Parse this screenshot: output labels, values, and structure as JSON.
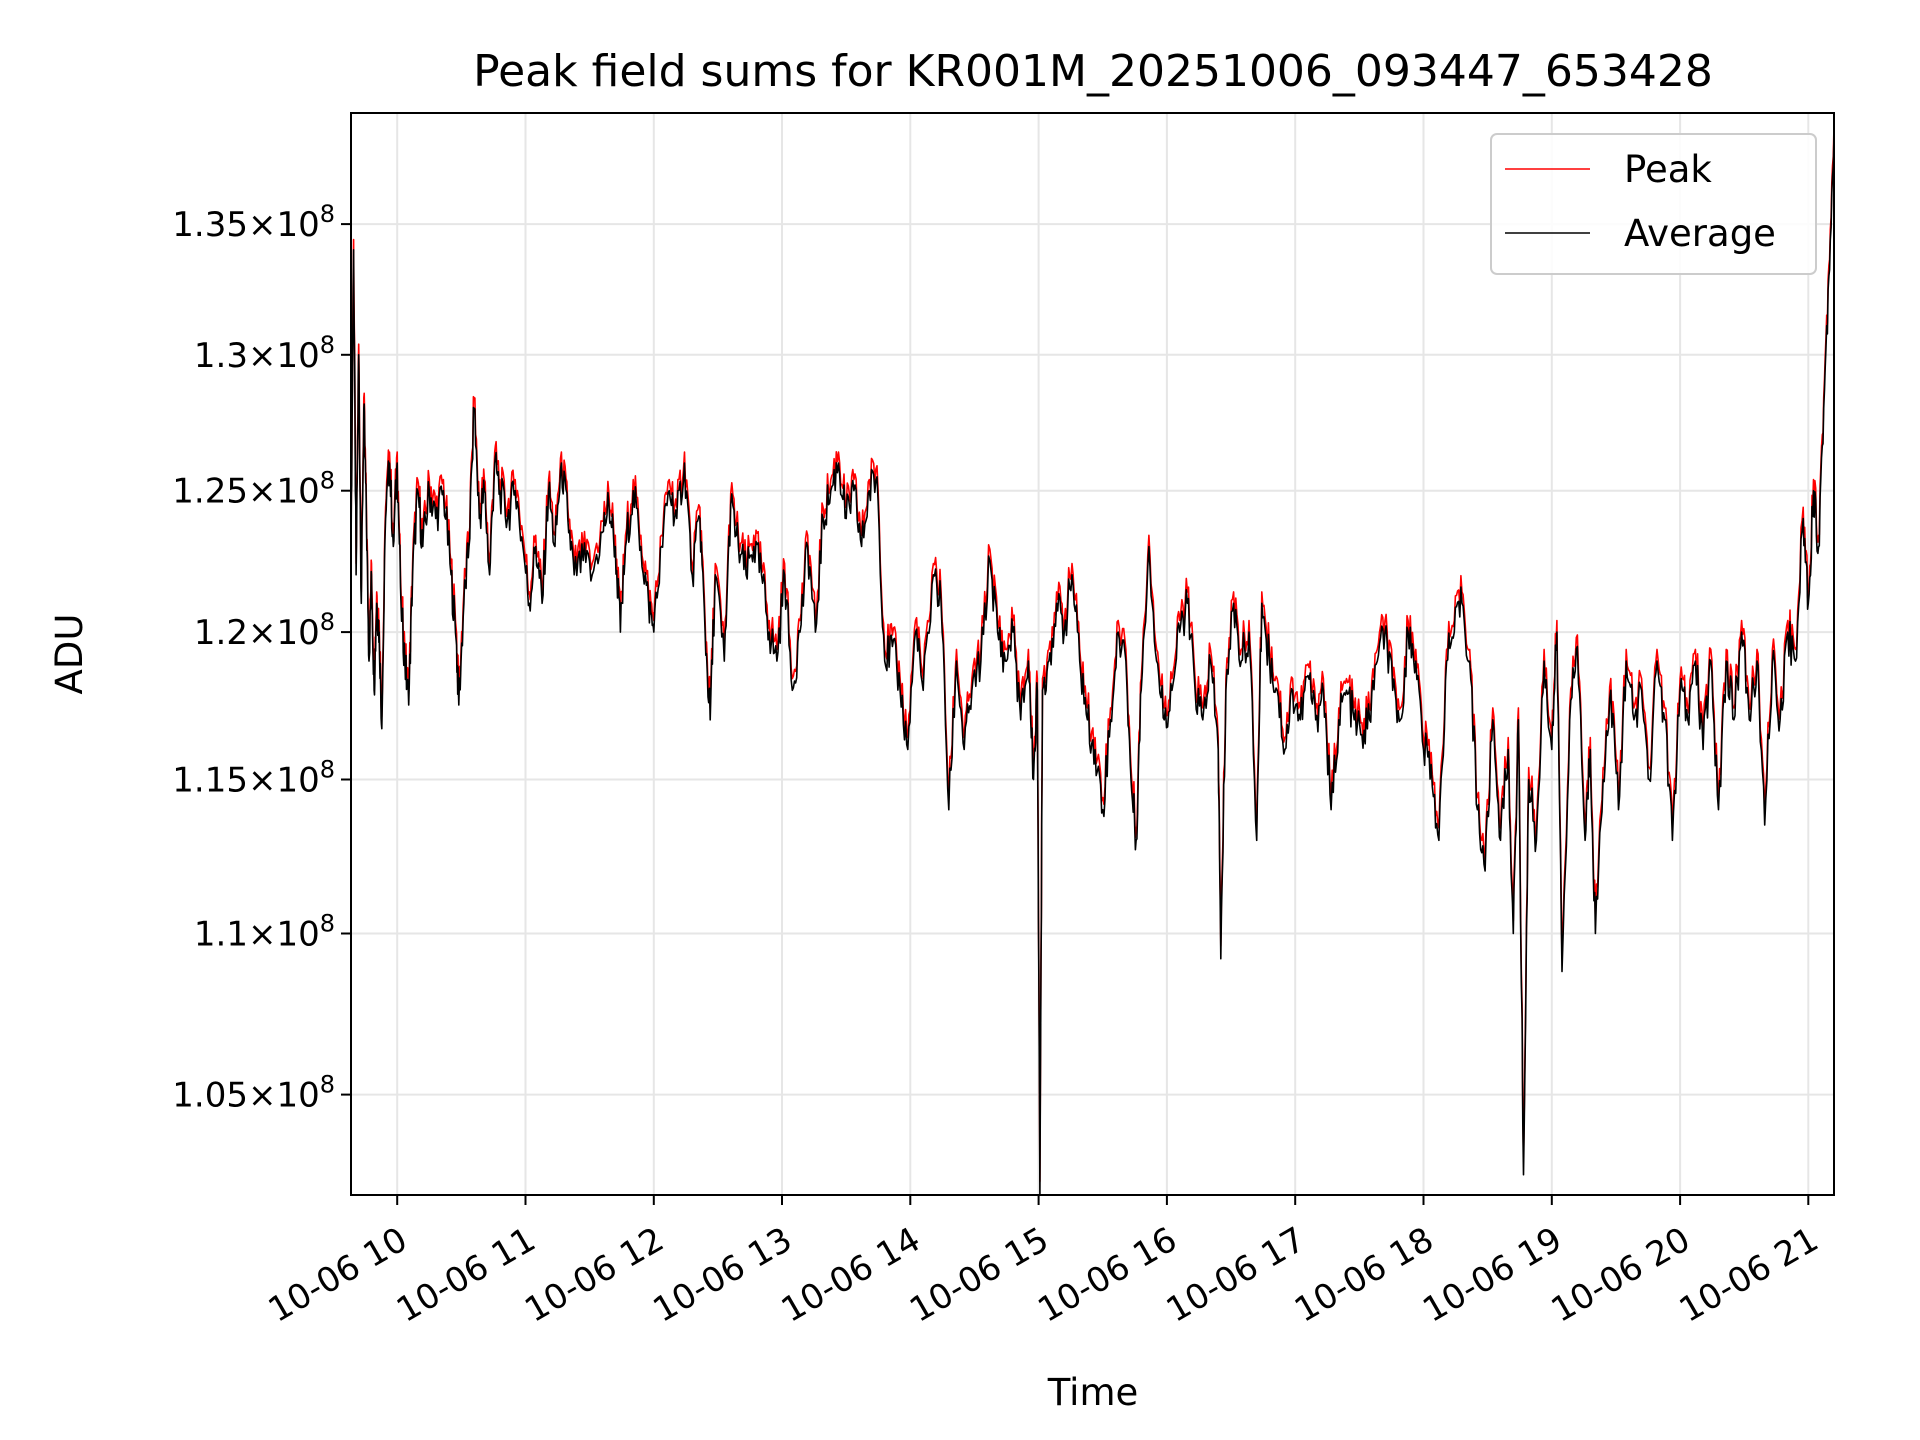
{
  "chart_data": {
    "type": "line",
    "title": "Peak field sums for KR001M_20251006_093447_653428",
    "xlabel": "Time",
    "ylabel": "ADU",
    "yscale": "log",
    "ylim": [
      102000000,
      139400000
    ],
    "xlim_hours": [
      9.64,
      21.2
    ],
    "grid": true,
    "legend_position": "top-right",
    "x_ticks": [
      {
        "hour": 10,
        "label": "10-06 10"
      },
      {
        "hour": 11,
        "label": "10-06 11"
      },
      {
        "hour": 12,
        "label": "10-06 12"
      },
      {
        "hour": 13,
        "label": "10-06 13"
      },
      {
        "hour": 14,
        "label": "10-06 14"
      },
      {
        "hour": 15,
        "label": "10-06 15"
      },
      {
        "hour": 16,
        "label": "10-06 16"
      },
      {
        "hour": 17,
        "label": "10-06 17"
      },
      {
        "hour": 18,
        "label": "10-06 18"
      },
      {
        "hour": 19,
        "label": "10-06 19"
      },
      {
        "hour": 20,
        "label": "10-06 20"
      },
      {
        "hour": 21,
        "label": "10-06 21"
      }
    ],
    "y_ticks": [
      {
        "value": 105000000,
        "mant": "1.05"
      },
      {
        "value": 110000000,
        "mant": "1.1"
      },
      {
        "value": 115000000,
        "mant": "1.15"
      },
      {
        "value": 120000000,
        "mant": "1.2"
      },
      {
        "value": 125000000,
        "mant": "1.25"
      },
      {
        "value": 130000000,
        "mant": "1.3"
      },
      {
        "value": 135000000,
        "mant": "1.35"
      }
    ],
    "y_tick_base": "10",
    "y_tick_exp": "8",
    "series": [
      {
        "name": "Peak",
        "color": "#ff0000",
        "offset": 400000
      },
      {
        "name": "Average",
        "color": "#000000",
        "offset": 0
      }
    ],
    "baseline_points": [
      [
        9.64,
        122600000.0
      ],
      [
        9.66,
        134000000.0
      ],
      [
        9.68,
        122000000.0
      ],
      [
        9.7,
        130000000.0
      ],
      [
        9.72,
        121000000.0
      ],
      [
        9.74,
        128000000.0
      ],
      [
        9.76,
        124000000.0
      ],
      [
        9.78,
        119000000.0
      ],
      [
        9.8,
        122000000.0
      ],
      [
        9.82,
        118000000.0
      ],
      [
        9.84,
        121000000.0
      ],
      [
        9.86,
        120000000.0
      ],
      [
        9.88,
        116700000.0
      ],
      [
        9.91,
        124000000.0
      ],
      [
        9.94,
        126000000.0
      ],
      [
        9.97,
        123000000.0
      ],
      [
        10.0,
        126000000.0
      ],
      [
        10.03,
        121000000.0
      ],
      [
        10.06,
        119000000.0
      ],
      [
        10.09,
        117500000.0
      ],
      [
        10.12,
        122000000.0
      ],
      [
        10.16,
        125000000.0
      ],
      [
        10.2,
        123000000.0
      ],
      [
        10.25,
        125000000.0
      ],
      [
        10.3,
        124000000.0
      ],
      [
        10.36,
        125000000.0
      ],
      [
        10.42,
        122000000.0
      ],
      [
        10.46,
        119700000.0
      ],
      [
        10.48,
        117500000.0
      ],
      [
        10.52,
        121000000.0
      ],
      [
        10.56,
        123000000.0
      ],
      [
        10.6,
        128000000.0
      ],
      [
        10.64,
        124000000.0
      ],
      [
        10.68,
        125000000.0
      ],
      [
        10.72,
        122000000.0
      ],
      [
        10.76,
        126000000.0
      ],
      [
        10.8,
        125000000.0
      ],
      [
        10.86,
        124000000.0
      ],
      [
        10.92,
        125000000.0
      ],
      [
        10.98,
        123000000.0
      ],
      [
        11.03,
        121000000.0
      ],
      [
        11.08,
        123000000.0
      ],
      [
        11.13,
        121000000.0
      ],
      [
        11.18,
        125000000.0
      ],
      [
        11.23,
        123000000.0
      ],
      [
        11.28,
        126000000.0
      ],
      [
        11.33,
        124000000.0
      ],
      [
        11.38,
        122000000.0
      ],
      [
        11.45,
        122500000.0
      ],
      [
        11.52,
        122000000.0
      ],
      [
        11.6,
        123500000.0
      ],
      [
        11.65,
        124500000.0
      ],
      [
        11.7,
        123000000.0
      ],
      [
        11.74,
        120000000.0
      ],
      [
        11.78,
        123000000.0
      ],
      [
        11.84,
        125000000.0
      ],
      [
        11.9,
        123000000.0
      ],
      [
        11.96,
        121000000.0
      ],
      [
        12.0,
        120000000.0
      ],
      [
        12.06,
        123000000.0
      ],
      [
        12.12,
        125000000.0
      ],
      [
        12.18,
        124000000.0
      ],
      [
        12.24,
        126000000.0
      ],
      [
        12.3,
        122000000.0
      ],
      [
        12.36,
        124000000.0
      ],
      [
        12.4,
        120000000.0
      ],
      [
        12.44,
        117000000.0
      ],
      [
        12.48,
        122000000.0
      ],
      [
        12.55,
        119000000.0
      ],
      [
        12.6,
        124500000.0
      ],
      [
        12.66,
        123000000.0
      ],
      [
        12.72,
        122000000.0
      ],
      [
        12.78,
        123000000.0
      ],
      [
        12.84,
        122000000.0
      ],
      [
        12.9,
        120000000.0
      ],
      [
        12.96,
        119000000.0
      ],
      [
        13.02,
        122000000.0
      ],
      [
        13.08,
        118000000.0
      ],
      [
        13.14,
        120000000.0
      ],
      [
        13.2,
        123000000.0
      ],
      [
        13.26,
        120000000.0
      ],
      [
        13.32,
        124000000.0
      ],
      [
        13.38,
        125000000.0
      ],
      [
        13.44,
        126000000.0
      ],
      [
        13.5,
        124000000.0
      ],
      [
        13.56,
        125000000.0
      ],
      [
        13.62,
        123000000.0
      ],
      [
        13.68,
        125000000.0
      ],
      [
        13.74,
        125500000.0
      ],
      [
        13.8,
        119000000.0
      ],
      [
        13.86,
        119500000.0
      ],
      [
        13.92,
        118000000.0
      ],
      [
        13.98,
        116000000.0
      ],
      [
        14.04,
        120000000.0
      ],
      [
        14.1,
        118000000.0
      ],
      [
        14.18,
        122000000.0
      ],
      [
        14.24,
        121000000.0
      ],
      [
        14.3,
        114000000.0
      ],
      [
        14.36,
        119000000.0
      ],
      [
        14.42,
        116000000.0
      ],
      [
        14.48,
        118000000.0
      ],
      [
        14.55,
        119000000.0
      ],
      [
        14.62,
        122500000.0
      ],
      [
        14.68,
        120000000.0
      ],
      [
        14.74,
        119000000.0
      ],
      [
        14.8,
        120000000.0
      ],
      [
        14.86,
        117000000.0
      ],
      [
        14.92,
        119000000.0
      ],
      [
        14.96,
        115000000.0
      ],
      [
        14.99,
        118000000.0
      ],
      [
        15.01,
        102000000.0
      ],
      [
        15.03,
        118000000.0
      ],
      [
        15.08,
        119000000.0
      ],
      [
        15.14,
        121000000.0
      ],
      [
        15.2,
        120000000.0
      ],
      [
        15.26,
        122000000.0
      ],
      [
        15.32,
        119000000.0
      ],
      [
        15.38,
        117000000.0
      ],
      [
        15.44,
        116000000.0
      ],
      [
        15.5,
        114000000.0
      ],
      [
        15.56,
        117000000.0
      ],
      [
        15.62,
        120000000.0
      ],
      [
        15.68,
        119000000.0
      ],
      [
        15.72,
        115000000.0
      ],
      [
        15.76,
        113000000.0
      ],
      [
        15.8,
        118000000.0
      ],
      [
        15.86,
        123000000.0
      ],
      [
        15.92,
        119000000.0
      ],
      [
        15.98,
        117000000.0
      ],
      [
        16.04,
        118000000.0
      ],
      [
        16.1,
        120000000.0
      ],
      [
        16.16,
        121000000.0
      ],
      [
        16.22,
        118000000.0
      ],
      [
        16.28,
        117000000.0
      ],
      [
        16.34,
        119000000.0
      ],
      [
        16.4,
        116000000.0
      ],
      [
        16.42,
        109200000.0
      ],
      [
        16.46,
        118000000.0
      ],
      [
        16.52,
        121000000.0
      ],
      [
        16.58,
        119000000.0
      ],
      [
        16.64,
        120000000.0
      ],
      [
        16.7,
        113000000.0
      ],
      [
        16.74,
        121000000.0
      ],
      [
        16.8,
        119000000.0
      ],
      [
        16.86,
        118000000.0
      ],
      [
        16.92,
        116000000.0
      ],
      [
        16.98,
        118000000.0
      ],
      [
        17.04,
        117000000.0
      ],
      [
        17.1,
        118500000.0
      ],
      [
        17.16,
        117000000.0
      ],
      [
        17.22,
        118000000.0
      ],
      [
        17.28,
        114000000.0
      ],
      [
        17.34,
        117000000.0
      ],
      [
        17.4,
        118000000.0
      ],
      [
        17.46,
        117000000.0
      ],
      [
        17.52,
        116500000.0
      ],
      [
        17.58,
        117000000.0
      ],
      [
        17.64,
        119000000.0
      ],
      [
        17.7,
        120000000.0
      ],
      [
        17.76,
        118000000.0
      ],
      [
        17.82,
        117000000.0
      ],
      [
        17.88,
        120000000.0
      ],
      [
        17.94,
        119000000.0
      ],
      [
        18.0,
        116000000.0
      ],
      [
        18.06,
        115500000.0
      ],
      [
        18.12,
        113000000.0
      ],
      [
        18.18,
        119000000.0
      ],
      [
        18.24,
        120000000.0
      ],
      [
        18.3,
        121000000.0
      ],
      [
        18.36,
        119000000.0
      ],
      [
        18.42,
        114000000.0
      ],
      [
        18.48,
        112000000.0
      ],
      [
        18.54,
        117000000.0
      ],
      [
        18.6,
        113000000.0
      ],
      [
        18.66,
        116000000.0
      ],
      [
        18.7,
        110000000.0
      ],
      [
        18.74,
        117000000.0
      ],
      [
        18.78,
        102600000.0
      ],
      [
        18.82,
        115000000.0
      ],
      [
        18.88,
        113000000.0
      ],
      [
        18.94,
        119000000.0
      ],
      [
        19.0,
        116000000.0
      ],
      [
        19.04,
        120000000.0
      ],
      [
        19.08,
        108800000.0
      ],
      [
        19.14,
        117000000.0
      ],
      [
        19.2,
        119500000.0
      ],
      [
        19.26,
        113000000.0
      ],
      [
        19.3,
        116000000.0
      ],
      [
        19.34,
        110000000.0
      ],
      [
        19.4,
        115000000.0
      ],
      [
        19.46,
        118000000.0
      ],
      [
        19.52,
        114000000.0
      ],
      [
        19.58,
        119000000.0
      ],
      [
        19.64,
        117000000.0
      ],
      [
        19.7,
        118000000.0
      ],
      [
        19.76,
        115000000.0
      ],
      [
        19.82,
        119000000.0
      ],
      [
        19.88,
        117000000.0
      ],
      [
        19.94,
        113000000.0
      ],
      [
        20.0,
        118000000.0
      ],
      [
        20.06,
        117000000.0
      ],
      [
        20.12,
        119000000.0
      ],
      [
        20.18,
        116000000.0
      ],
      [
        20.24,
        119000000.0
      ],
      [
        20.3,
        114000000.0
      ],
      [
        20.36,
        119000000.0
      ],
      [
        20.42,
        117000000.0
      ],
      [
        20.48,
        120000000.0
      ],
      [
        20.54,
        117000000.0
      ],
      [
        20.6,
        119000000.0
      ],
      [
        20.66,
        113500000.0
      ],
      [
        20.72,
        119000000.0
      ],
      [
        20.78,
        117000000.0
      ],
      [
        20.84,
        120000000.0
      ],
      [
        20.9,
        119000000.0
      ],
      [
        20.96,
        124000000.0
      ],
      [
        21.0,
        121000000.0
      ],
      [
        21.04,
        125000000.0
      ],
      [
        21.08,
        123000000.0
      ],
      [
        21.12,
        128000000.0
      ],
      [
        21.16,
        133000000.0
      ],
      [
        21.2,
        138500000.0
      ]
    ]
  }
}
